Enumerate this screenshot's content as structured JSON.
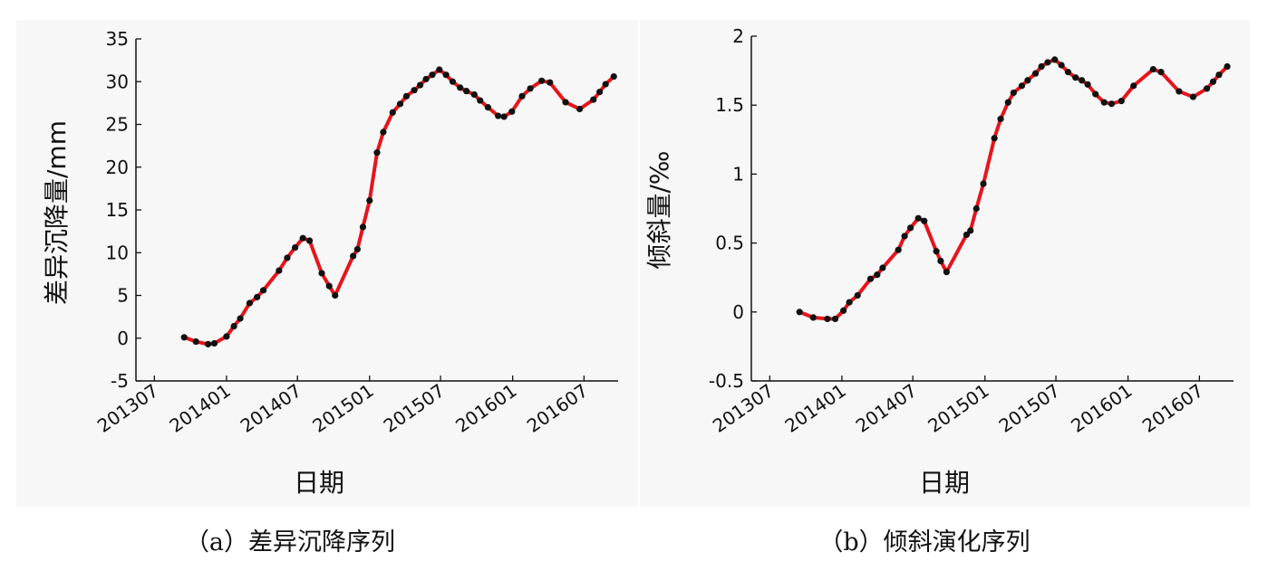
{
  "chart_data": [
    {
      "type": "line",
      "caption": "（a）差异沉降序列",
      "xlabel": "日期",
      "ylabel": "差异沉降量/mm",
      "ylim": [
        -5,
        35
      ],
      "yticks": [
        -5,
        0,
        5,
        10,
        15,
        20,
        25,
        30,
        35
      ],
      "xticks": [
        "201307",
        "201401",
        "201407",
        "201501",
        "201507",
        "201601",
        "201607"
      ],
      "xtick_dates": [
        "2013-07-01",
        "2014-01-01",
        "2014-07-01",
        "2015-01-01",
        "2015-07-01",
        "2016-01-01",
        "2016-07-01"
      ],
      "xlim": [
        "2013-05-15",
        "2016-09-26"
      ],
      "grid": false,
      "line_color": "#e8141b",
      "marker_color": "#111111",
      "points": [
        [
          "2013-09-15",
          0.1
        ],
        [
          "2013-10-15",
          -0.4
        ],
        [
          "2013-11-15",
          -0.7
        ],
        [
          "2013-12-01",
          -0.6
        ],
        [
          "2014-01-01",
          0.2
        ],
        [
          "2014-01-20",
          1.4
        ],
        [
          "2014-02-05",
          2.3
        ],
        [
          "2014-03-01",
          4.1
        ],
        [
          "2014-03-20",
          4.8
        ],
        [
          "2014-04-05",
          5.6
        ],
        [
          "2014-05-15",
          7.9
        ],
        [
          "2014-06-05",
          9.4
        ],
        [
          "2014-06-25",
          10.6
        ],
        [
          "2014-07-15",
          11.7
        ],
        [
          "2014-08-01",
          11.4
        ],
        [
          "2014-09-01",
          7.6
        ],
        [
          "2014-09-20",
          6.1
        ],
        [
          "2014-10-05",
          5.0
        ],
        [
          "2014-11-20",
          9.6
        ],
        [
          "2014-12-01",
          10.4
        ],
        [
          "2014-12-15",
          13.0
        ],
        [
          "2015-01-01",
          16.1
        ],
        [
          "2015-01-20",
          21.7
        ],
        [
          "2015-02-05",
          24.1
        ],
        [
          "2015-03-01",
          26.4
        ],
        [
          "2015-03-20",
          27.4
        ],
        [
          "2015-04-05",
          28.3
        ],
        [
          "2015-04-25",
          29.0
        ],
        [
          "2015-05-10",
          29.6
        ],
        [
          "2015-05-25",
          30.3
        ],
        [
          "2015-06-10",
          30.8
        ],
        [
          "2015-06-28",
          31.4
        ],
        [
          "2015-07-15",
          30.8
        ],
        [
          "2015-08-01",
          30.0
        ],
        [
          "2015-08-20",
          29.3
        ],
        [
          "2015-09-05",
          28.9
        ],
        [
          "2015-09-25",
          28.5
        ],
        [
          "2015-10-10",
          27.8
        ],
        [
          "2015-10-30",
          27.0
        ],
        [
          "2015-11-25",
          26.0
        ],
        [
          "2015-12-10",
          25.9
        ],
        [
          "2015-12-30",
          26.5
        ],
        [
          "2016-01-25",
          28.3
        ],
        [
          "2016-02-15",
          29.2
        ],
        [
          "2016-03-15",
          30.1
        ],
        [
          "2016-04-05",
          29.9
        ],
        [
          "2016-05-15",
          27.6
        ],
        [
          "2016-06-20",
          26.8
        ],
        [
          "2016-07-25",
          27.9
        ],
        [
          "2016-08-10",
          28.8
        ],
        [
          "2016-08-25",
          29.7
        ],
        [
          "2016-09-15",
          30.6
        ]
      ]
    },
    {
      "type": "line",
      "caption": "（b）倾斜演化序列",
      "xlabel": "日期",
      "ylabel": "倾斜量/‰",
      "ylim": [
        -0.5,
        2
      ],
      "yticks": [
        -0.5,
        0,
        0.5,
        1,
        1.5,
        2
      ],
      "ytick_labels": [
        "-0.5",
        "0",
        "0.5",
        "1",
        "1.5",
        "2"
      ],
      "xticks": [
        "201307",
        "201401",
        "201407",
        "201501",
        "201507",
        "201601",
        "201607"
      ],
      "xtick_dates": [
        "2013-07-01",
        "2014-01-01",
        "2014-07-01",
        "2015-01-01",
        "2015-07-01",
        "2016-01-01",
        "2016-07-01"
      ],
      "xlim": [
        "2013-05-15",
        "2016-09-26"
      ],
      "grid": false,
      "line_color": "#e8141b",
      "marker_color": "#111111",
      "points": [
        [
          "2013-09-15",
          0.0
        ],
        [
          "2013-10-20",
          -0.04
        ],
        [
          "2013-11-25",
          -0.05
        ],
        [
          "2013-12-15",
          -0.05
        ],
        [
          "2014-01-05",
          0.01
        ],
        [
          "2014-01-20",
          0.07
        ],
        [
          "2014-02-10",
          0.12
        ],
        [
          "2014-03-15",
          0.24
        ],
        [
          "2014-04-01",
          0.27
        ],
        [
          "2014-04-15",
          0.32
        ],
        [
          "2014-05-25",
          0.45
        ],
        [
          "2014-06-10",
          0.55
        ],
        [
          "2014-06-25",
          0.61
        ],
        [
          "2014-07-15",
          0.68
        ],
        [
          "2014-07-30",
          0.66
        ],
        [
          "2014-08-30",
          0.44
        ],
        [
          "2014-09-10",
          0.37
        ],
        [
          "2014-09-25",
          0.29
        ],
        [
          "2014-11-15",
          0.56
        ],
        [
          "2014-11-25",
          0.59
        ],
        [
          "2014-12-10",
          0.75
        ],
        [
          "2014-12-28",
          0.93
        ],
        [
          "2015-01-25",
          1.26
        ],
        [
          "2015-02-10",
          1.4
        ],
        [
          "2015-03-01",
          1.52
        ],
        [
          "2015-03-15",
          1.59
        ],
        [
          "2015-04-05",
          1.64
        ],
        [
          "2015-04-20",
          1.68
        ],
        [
          "2015-05-10",
          1.73
        ],
        [
          "2015-05-25",
          1.78
        ],
        [
          "2015-06-10",
          1.81
        ],
        [
          "2015-06-28",
          1.83
        ],
        [
          "2015-07-15",
          1.79
        ],
        [
          "2015-08-01",
          1.74
        ],
        [
          "2015-08-20",
          1.7
        ],
        [
          "2015-09-05",
          1.68
        ],
        [
          "2015-09-20",
          1.65
        ],
        [
          "2015-10-10",
          1.58
        ],
        [
          "2015-11-01",
          1.52
        ],
        [
          "2015-11-20",
          1.51
        ],
        [
          "2015-12-15",
          1.53
        ],
        [
          "2016-01-15",
          1.64
        ],
        [
          "2016-03-05",
          1.76
        ],
        [
          "2016-03-25",
          1.74
        ],
        [
          "2016-05-10",
          1.6
        ],
        [
          "2016-06-15",
          1.56
        ],
        [
          "2016-07-20",
          1.62
        ],
        [
          "2016-08-05",
          1.67
        ],
        [
          "2016-08-20",
          1.72
        ],
        [
          "2016-09-10",
          1.78
        ]
      ]
    }
  ]
}
